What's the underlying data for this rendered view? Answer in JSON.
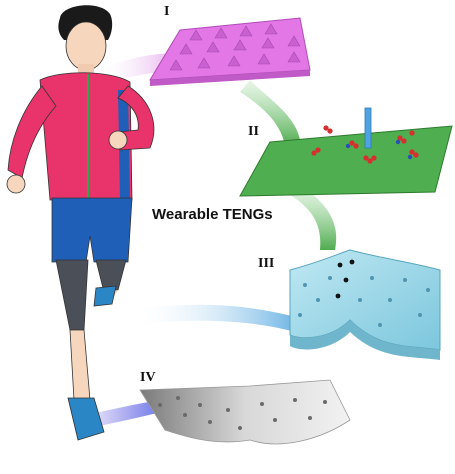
{
  "title": "Wearable TENGs",
  "panels": [
    {
      "label": "I",
      "description": "pyramid-array"
    },
    {
      "label": "II",
      "description": "plate-with-probe"
    },
    {
      "label": "III",
      "description": "curved-sheet"
    },
    {
      "label": "IV",
      "description": "folded-sheet"
    }
  ],
  "colors": {
    "panel_i": "#e377e6",
    "panel_ii": "#4fae4f",
    "panel_iii": "#8fd3e6",
    "panel_iv": "#cfcfcf",
    "jacket": "#e8336b",
    "shorts": "#1f5fb8"
  }
}
